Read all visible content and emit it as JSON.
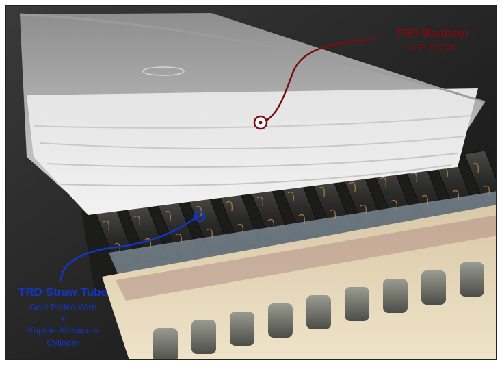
{
  "annotations": {
    "radiator": {
      "title": "TRD Radiator",
      "subtitle": "LRP 375 BK",
      "color": "#7a0c0c"
    },
    "straw_tube": {
      "title": "TRD Straw Tube",
      "line1": "Gold Plated Wire",
      "line2": "+",
      "line3": "Kapton-Aluminum",
      "line4": "Cylinder",
      "color": "#1136c8"
    }
  }
}
